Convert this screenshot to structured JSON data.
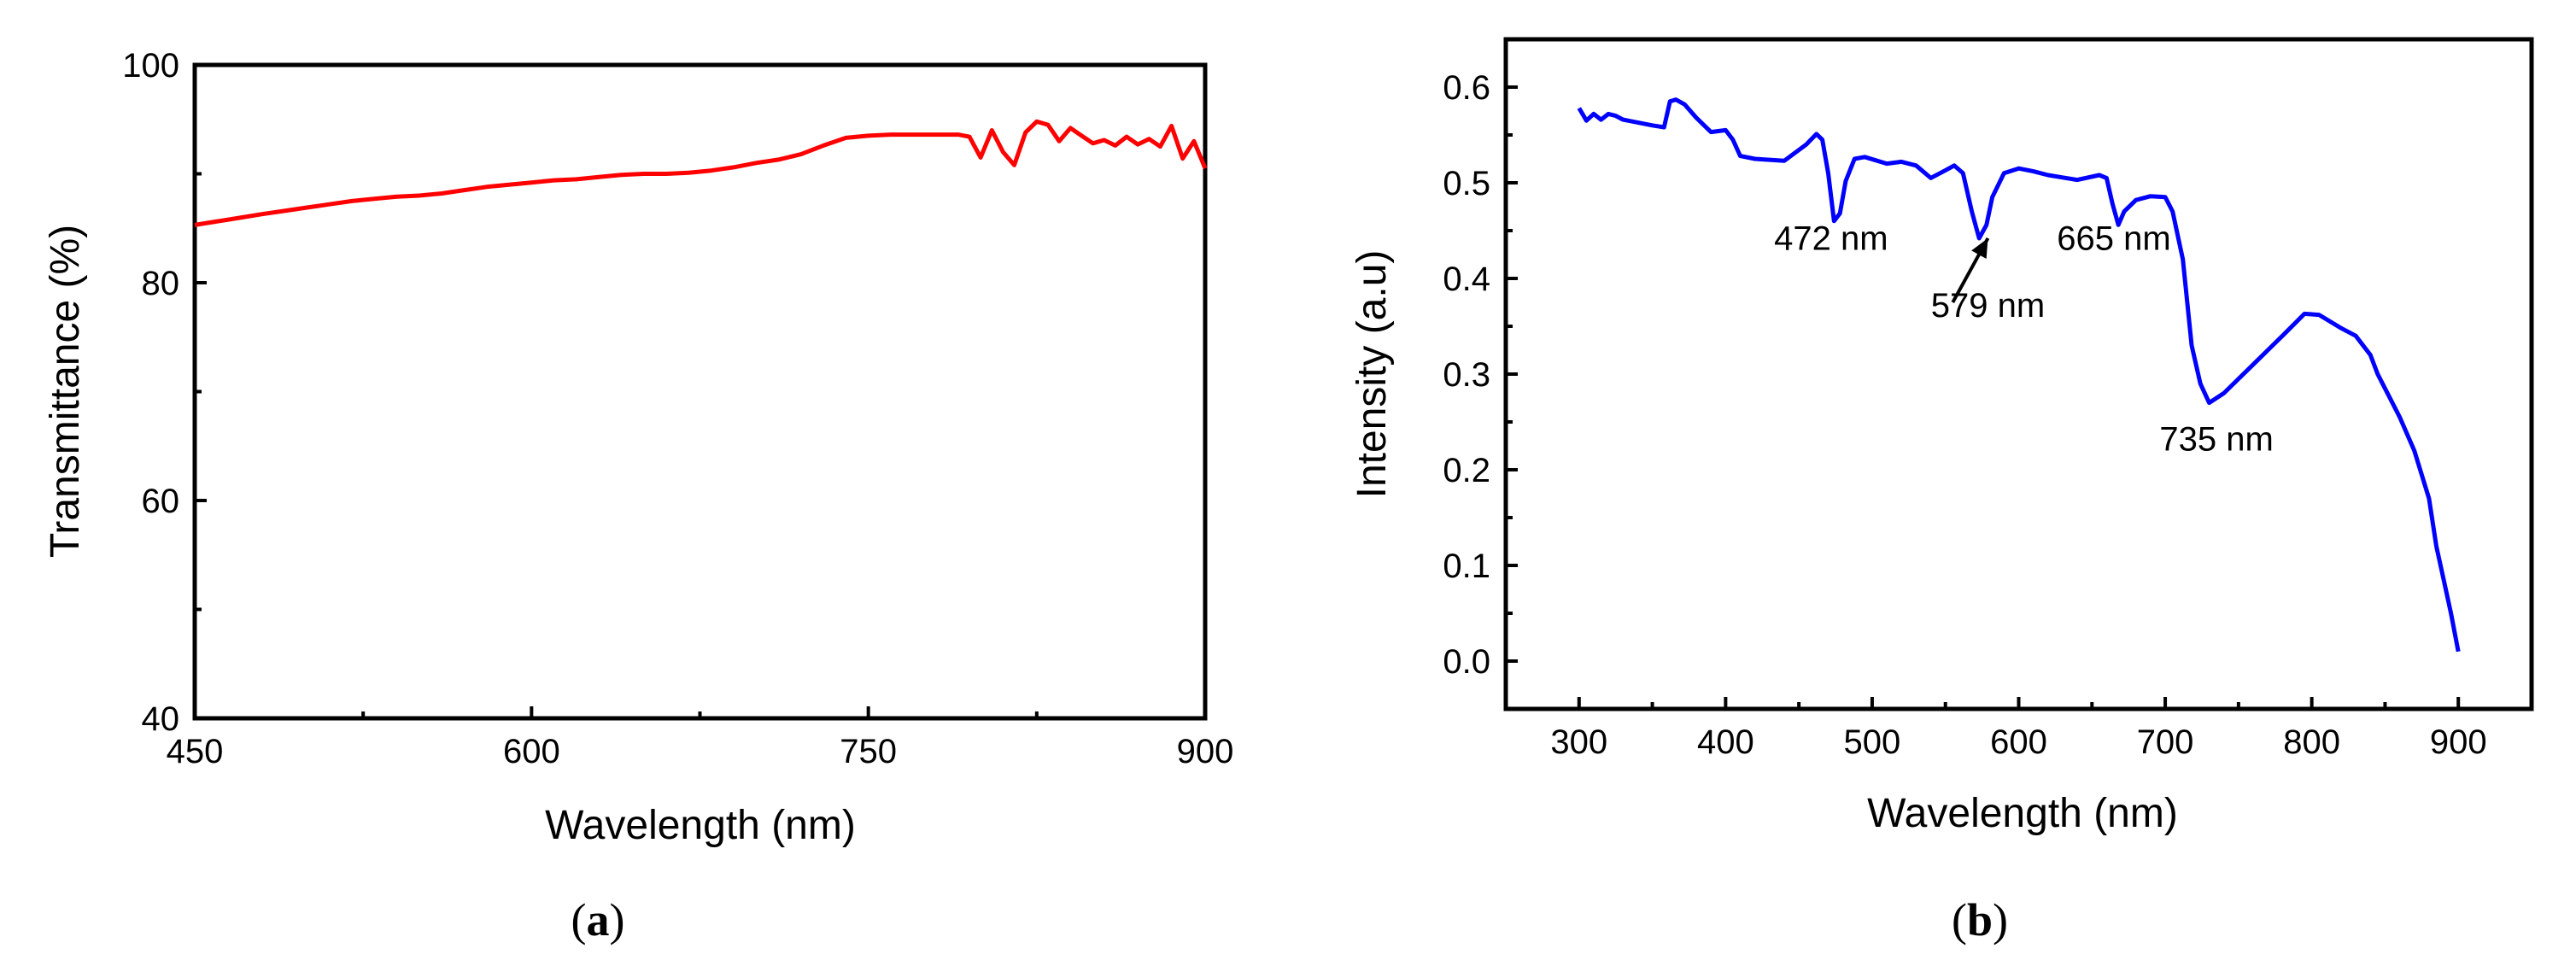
{
  "chart_data": [
    {
      "type": "line",
      "panel_label": {
        "open": "(",
        "letter": "a",
        "close": ")"
      },
      "xlabel": "Wavelength (nm)",
      "ylabel": "Transmittance (%)",
      "xlim": [
        450,
        900
      ],
      "ylim": [
        40,
        100
      ],
      "xticks": [
        450,
        600,
        750,
        900
      ],
      "xtick_labels": [
        "450",
        "600",
        "750",
        "900"
      ],
      "yticks": [
        40,
        60,
        80,
        100
      ],
      "ytick_labels": [
        "40",
        "60",
        "80",
        "100"
      ],
      "series": [
        {
          "name": "Transmittance",
          "color": "#ff0000",
          "x": [
            450,
            465,
            480,
            490,
            500,
            510,
            520,
            530,
            540,
            550,
            560,
            570,
            580,
            590,
            600,
            610,
            620,
            630,
            640,
            650,
            660,
            670,
            680,
            690,
            700,
            710,
            720,
            730,
            740,
            750,
            760,
            770,
            780,
            790,
            795,
            800,
            805,
            810,
            815,
            820,
            825,
            830,
            835,
            840,
            845,
            850,
            855,
            860,
            865,
            870,
            875,
            880,
            885,
            890,
            895,
            900
          ],
          "y": [
            85.3,
            85.8,
            86.3,
            86.6,
            86.9,
            87.2,
            87.5,
            87.7,
            87.9,
            88.0,
            88.2,
            88.5,
            88.8,
            89.0,
            89.2,
            89.4,
            89.5,
            89.7,
            89.9,
            90.0,
            90.0,
            90.1,
            90.3,
            90.6,
            91.0,
            91.3,
            91.8,
            92.6,
            93.3,
            93.5,
            93.6,
            93.6,
            93.6,
            93.6,
            93.4,
            91.5,
            94.0,
            92.0,
            90.8,
            93.8,
            94.8,
            94.5,
            93.0,
            94.2,
            93.5,
            92.8,
            93.1,
            92.6,
            93.4,
            92.7,
            93.2,
            92.5,
            94.4,
            91.4,
            93.0,
            90.5
          ]
        }
      ]
    },
    {
      "type": "line",
      "panel_label": {
        "open": "(",
        "letter": "b",
        "close": ")"
      },
      "xlabel": "Wavelength (nm)",
      "ylabel": "Intensity (a.u)",
      "xlim": [
        250,
        950
      ],
      "ylim": [
        -0.05,
        0.65
      ],
      "xticks": [
        300,
        400,
        500,
        600,
        700,
        800,
        900
      ],
      "xtick_labels": [
        "300",
        "400",
        "500",
        "600",
        "700",
        "800",
        "900"
      ],
      "yticks": [
        0.0,
        0.1,
        0.2,
        0.3,
        0.4,
        0.5,
        0.6
      ],
      "ytick_labels": [
        "0.0",
        "0.1",
        "0.2",
        "0.3",
        "0.4",
        "0.5",
        "0.6"
      ],
      "series": [
        {
          "name": "Intensity",
          "color": "#0000ff",
          "x": [
            300,
            305,
            310,
            315,
            320,
            325,
            330,
            340,
            350,
            358,
            362,
            366,
            372,
            380,
            390,
            400,
            405,
            410,
            420,
            440,
            455,
            462,
            466,
            470,
            474,
            478,
            482,
            488,
            495,
            510,
            520,
            530,
            540,
            550,
            556,
            562,
            568,
            573,
            578,
            582,
            590,
            600,
            610,
            620,
            640,
            655,
            660,
            664,
            668,
            672,
            680,
            690,
            700,
            705,
            712,
            718,
            724,
            730,
            740,
            760,
            780,
            795,
            805,
            820,
            830,
            840,
            845,
            850,
            860,
            870,
            880,
            885,
            890,
            895,
            900
          ],
          "y": [
            0.578,
            0.565,
            0.572,
            0.566,
            0.572,
            0.57,
            0.566,
            0.563,
            0.56,
            0.558,
            0.585,
            0.587,
            0.582,
            0.568,
            0.553,
            0.555,
            0.545,
            0.528,
            0.525,
            0.523,
            0.54,
            0.551,
            0.545,
            0.51,
            0.46,
            0.468,
            0.502,
            0.525,
            0.527,
            0.52,
            0.522,
            0.518,
            0.505,
            0.513,
            0.518,
            0.51,
            0.47,
            0.442,
            0.456,
            0.485,
            0.51,
            0.515,
            0.512,
            0.508,
            0.503,
            0.508,
            0.505,
            0.478,
            0.456,
            0.47,
            0.482,
            0.486,
            0.485,
            0.47,
            0.42,
            0.33,
            0.29,
            0.27,
            0.28,
            0.31,
            0.34,
            0.363,
            0.362,
            0.348,
            0.34,
            0.32,
            0.3,
            0.285,
            0.255,
            0.22,
            0.17,
            0.12,
            0.085,
            0.05,
            0.01
          ]
        }
      ],
      "annotations": [
        {
          "text": "472 nm",
          "x": 472,
          "y": 0.43
        },
        {
          "text": "579 nm",
          "x": 579,
          "y": 0.36
        },
        {
          "text": "665 nm",
          "x": 665,
          "y": 0.43
        },
        {
          "text": "735 nm",
          "x": 735,
          "y": 0.22
        }
      ],
      "arrow": {
        "from_x": 555,
        "from_y": 0.375,
        "to_x": 579,
        "to_y": 0.442
      }
    }
  ]
}
